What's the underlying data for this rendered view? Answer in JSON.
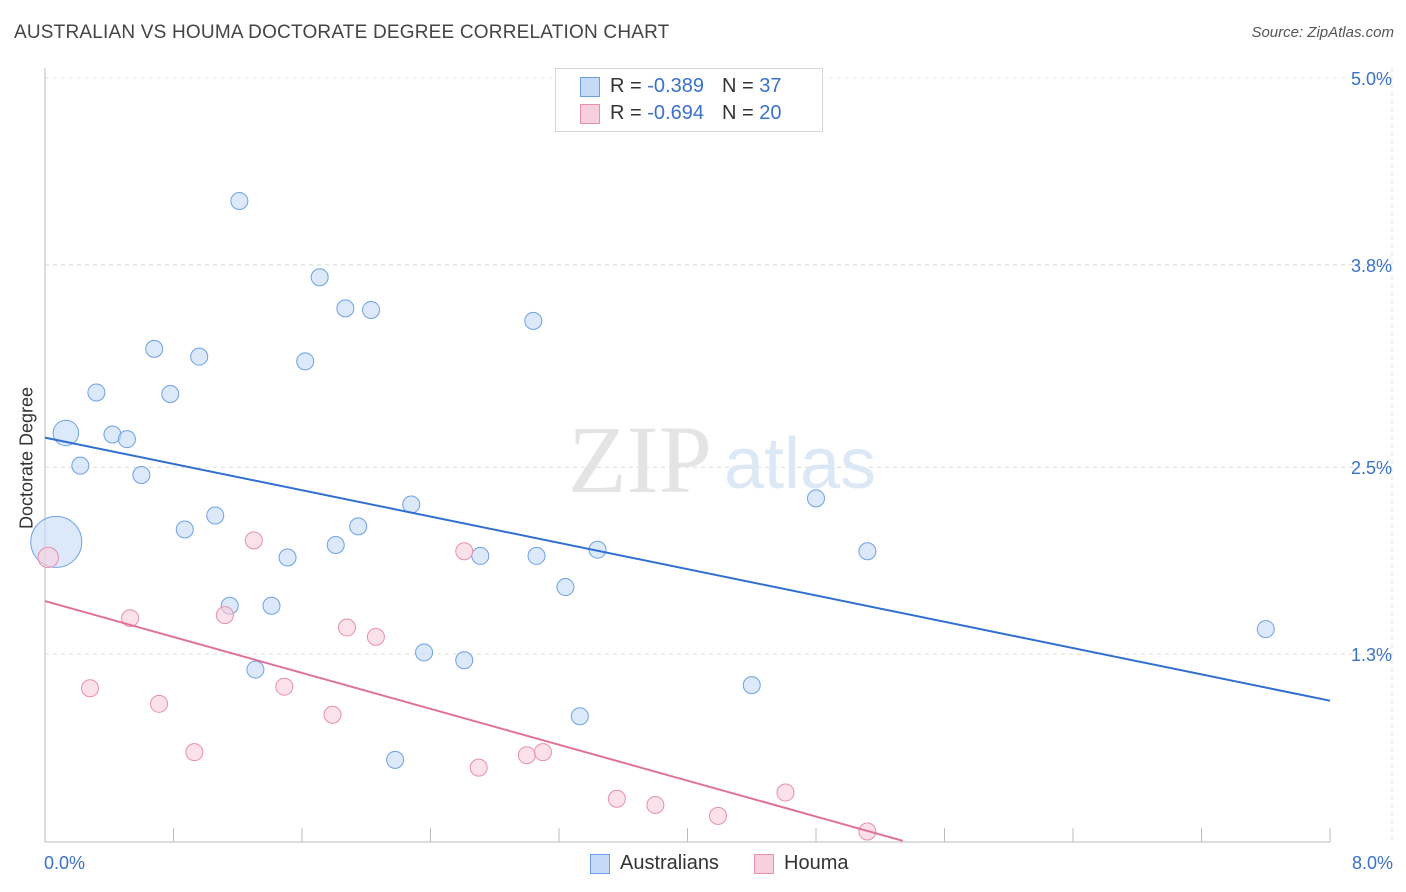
{
  "title": "AUSTRALIAN VS HOUMA DOCTORATE DEGREE CORRELATION CHART",
  "source": "Source: ZipAtlas.com",
  "watermark": {
    "zip": "ZIP",
    "atlas": "atlas"
  },
  "legend": {
    "rows": [
      {
        "r_label": "R =",
        "r_value": "-0.389",
        "n_label": "N =",
        "n_value": "37"
      },
      {
        "r_label": "R =",
        "r_value": "-0.694",
        "n_label": "N =",
        "n_value": "20"
      }
    ]
  },
  "bottom_legend": [
    "Australians",
    "Houma"
  ],
  "chart_data": {
    "type": "scatter",
    "title": "AUSTRALIAN VS HOUMA DOCTORATE DEGREE CORRELATION CHART",
    "xlabel": "",
    "ylabel": "Doctorate Degree",
    "xlim": [
      0,
      8.0
    ],
    "ylim": [
      0.1,
      5.2
    ],
    "x_tick_labels": [
      "0.0%",
      "8.0%"
    ],
    "y_ticks": [
      1.3,
      2.5,
      3.8,
      5.0
    ],
    "y_tick_labels": [
      "1.3%",
      "2.5%",
      "3.8%",
      "5.0%"
    ],
    "grid": true,
    "legend_position": "top-center",
    "series": [
      {
        "name": "Australians",
        "color": "#6ea0e6",
        "fill": "#c5daf6",
        "R": -0.389,
        "N": 37,
        "trend": [
          [
            0.0,
            2.69
          ],
          [
            8.0,
            1.0
          ]
        ],
        "points": [
          [
            0.07,
            2.02,
            3
          ],
          [
            0.13,
            2.72,
            1.5
          ],
          [
            0.22,
            2.51,
            1
          ],
          [
            0.32,
            2.98,
            1
          ],
          [
            0.42,
            2.71,
            1
          ],
          [
            0.51,
            2.68,
            1
          ],
          [
            0.6,
            2.45,
            1
          ],
          [
            0.68,
            3.26,
            1
          ],
          [
            0.78,
            2.97,
            1
          ],
          [
            0.87,
            2.1,
            1
          ],
          [
            0.96,
            3.21,
            1
          ],
          [
            1.06,
            2.19,
            1
          ],
          [
            1.15,
            1.61,
            1
          ],
          [
            1.21,
            4.21,
            1
          ],
          [
            1.31,
            1.2,
            1
          ],
          [
            1.41,
            1.61,
            1
          ],
          [
            1.51,
            1.92,
            1
          ],
          [
            1.62,
            3.18,
            1
          ],
          [
            1.71,
            3.72,
            1
          ],
          [
            1.81,
            2.0,
            1
          ],
          [
            1.87,
            3.52,
            1
          ],
          [
            1.95,
            2.12,
            1
          ],
          [
            2.03,
            3.51,
            1
          ],
          [
            2.18,
            0.62,
            1
          ],
          [
            2.28,
            2.26,
            1
          ],
          [
            2.36,
            1.31,
            1
          ],
          [
            2.61,
            1.26,
            1
          ],
          [
            2.71,
            1.93,
            1
          ],
          [
            3.04,
            3.44,
            1
          ],
          [
            3.06,
            1.93,
            1
          ],
          [
            3.24,
            1.73,
            1
          ],
          [
            3.33,
            0.9,
            1
          ],
          [
            3.44,
            1.97,
            1
          ],
          [
            4.4,
            1.1,
            1
          ],
          [
            4.8,
            2.3,
            1
          ],
          [
            5.12,
            1.96,
            1
          ],
          [
            7.6,
            1.46,
            1
          ]
        ]
      },
      {
        "name": "Houma",
        "color": "#e88fab",
        "fill": "#f8cfdc",
        "R": -0.694,
        "N": 20,
        "trend": [
          [
            0.0,
            1.64
          ],
          [
            5.34,
            0.1
          ]
        ],
        "points": [
          [
            0.02,
            1.92,
            1.2
          ],
          [
            0.28,
            1.08,
            1
          ],
          [
            0.53,
            1.53,
            1
          ],
          [
            0.71,
            0.98,
            1
          ],
          [
            0.93,
            0.67,
            1
          ],
          [
            1.12,
            1.55,
            1
          ],
          [
            1.3,
            2.03,
            1
          ],
          [
            1.49,
            1.09,
            1
          ],
          [
            1.79,
            0.91,
            1
          ],
          [
            1.88,
            1.47,
            1
          ],
          [
            2.06,
            1.41,
            1
          ],
          [
            2.61,
            1.96,
            1
          ],
          [
            2.7,
            0.57,
            1
          ],
          [
            3.0,
            0.65,
            1
          ],
          [
            3.1,
            0.67,
            1
          ],
          [
            3.56,
            0.37,
            1
          ],
          [
            3.8,
            0.33,
            1
          ],
          [
            4.19,
            0.26,
            1
          ],
          [
            4.61,
            0.41,
            1
          ],
          [
            5.12,
            0.16,
            1
          ]
        ]
      }
    ]
  }
}
